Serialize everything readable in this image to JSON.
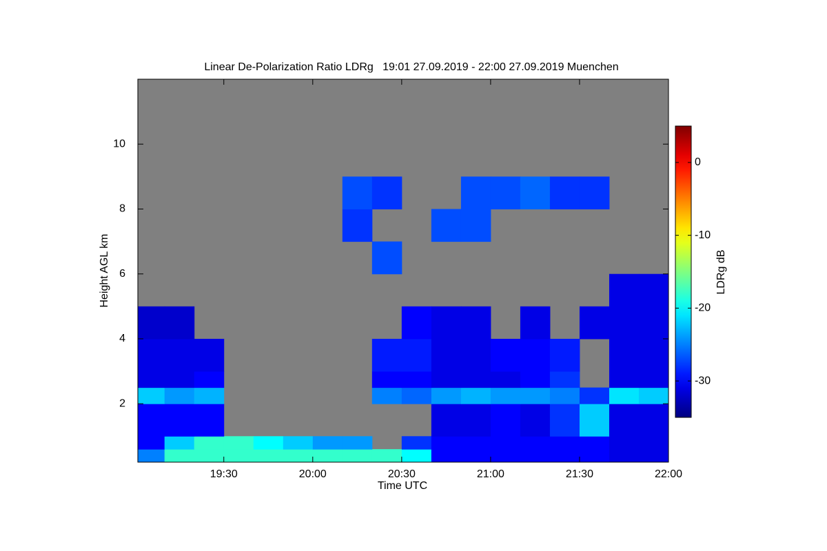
{
  "chart_data": {
    "type": "heatmap",
    "title": "Linear De-Polarization Ratio LDRg   19:01 27.09.2019 - 22:00 27.09.2019 Muenchen",
    "xlabel": "Time UTC",
    "ylabel": "Height AGL km",
    "colorbar_label": "LDRg dB",
    "colormap": "jet",
    "background": "#808080",
    "xlim": [
      1141,
      1320
    ],
    "xticks": [
      {
        "value": 1170,
        "label": "19:30"
      },
      {
        "value": 1200,
        "label": "20:00"
      },
      {
        "value": 1230,
        "label": "20:30"
      },
      {
        "value": 1260,
        "label": "21:00"
      },
      {
        "value": 1290,
        "label": "21:30"
      },
      {
        "value": 1320,
        "label": "22:00"
      }
    ],
    "ylim": [
      0.2,
      12
    ],
    "yticks": [
      2,
      4,
      6,
      8,
      10
    ],
    "zlim": [
      -35,
      5
    ],
    "zticks": [
      0,
      -10,
      -20,
      -30
    ],
    "xbins": [
      1140,
      1150,
      1160,
      1170,
      1180,
      1190,
      1200,
      1210,
      1220,
      1230,
      1240,
      1250,
      1260,
      1270,
      1280,
      1290,
      1300,
      1310,
      1320
    ],
    "ybins": [
      0.2,
      0.6,
      1,
      2,
      2.5,
      3,
      4,
      5,
      6,
      7,
      8,
      9,
      12
    ],
    "z": [
      [
        -25,
        -18,
        -18,
        -18,
        -18,
        -18,
        -18,
        -18,
        -18,
        -20,
        -30,
        -30,
        -30,
        -30,
        -30,
        -30,
        -31,
        -31
      ],
      [
        -30,
        -22,
        -18,
        -18,
        -20,
        -22,
        -24,
        -24,
        null,
        -28,
        -30,
        -30,
        -30,
        -30,
        -30,
        -30,
        -31,
        -31
      ],
      [
        -30,
        -30,
        -30,
        null,
        null,
        null,
        null,
        null,
        null,
        null,
        -31,
        -31,
        -30,
        -31,
        -28,
        -22,
        -31,
        -31
      ],
      [
        -22,
        -24,
        -23,
        null,
        null,
        null,
        null,
        null,
        -25,
        -26,
        -24,
        -23,
        -24,
        -24,
        -25,
        -28,
        -21,
        -22
      ],
      [
        -31,
        -31,
        -30,
        null,
        null,
        null,
        null,
        null,
        -30,
        -30,
        -31,
        -31,
        -31,
        -30,
        -28,
        null,
        -31,
        -31
      ],
      [
        -31,
        -31,
        -31,
        null,
        null,
        null,
        null,
        null,
        -29,
        -29,
        -31,
        -31,
        -30,
        -30,
        -29,
        null,
        -31,
        -31
      ],
      [
        -32,
        -32,
        null,
        null,
        null,
        null,
        null,
        null,
        null,
        -30,
        -31,
        -31,
        null,
        -31,
        null,
        -31,
        -31,
        -31
      ],
      [
        null,
        null,
        null,
        null,
        null,
        null,
        null,
        null,
        null,
        null,
        null,
        null,
        null,
        null,
        null,
        null,
        -31,
        -31
      ],
      [
        null,
        null,
        null,
        null,
        null,
        null,
        null,
        null,
        -27,
        null,
        null,
        null,
        null,
        null,
        null,
        null,
        null,
        null
      ],
      [
        null,
        null,
        null,
        null,
        null,
        null,
        null,
        -28,
        null,
        null,
        -27,
        -27,
        null,
        null,
        null,
        null,
        null,
        null
      ],
      [
        null,
        null,
        null,
        null,
        null,
        null,
        null,
        -27,
        -28,
        null,
        null,
        -27,
        -27,
        -26,
        -28,
        -28,
        null,
        null
      ],
      [
        null,
        null,
        null,
        null,
        null,
        null,
        null,
        null,
        null,
        null,
        null,
        null,
        null,
        null,
        null,
        null,
        null,
        null
      ]
    ]
  }
}
